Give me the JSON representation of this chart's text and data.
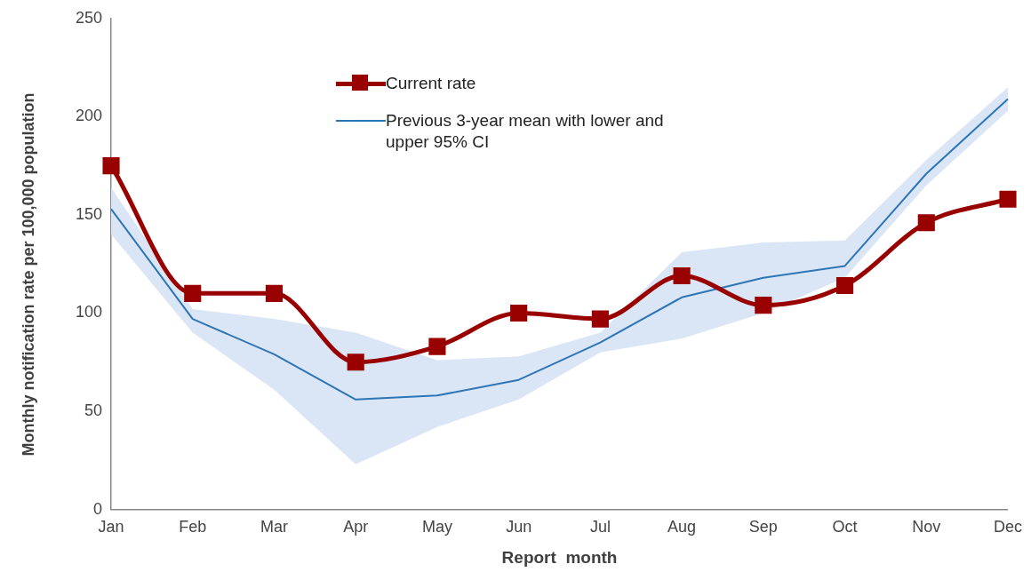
{
  "chart_data": {
    "type": "line",
    "xlabel": "Report  month",
    "ylabel": "Monthly notification rate per 100,000 population",
    "categories": [
      "Jan",
      "Feb",
      "Mar",
      "Apr",
      "May",
      "Jun",
      "Jul",
      "Aug",
      "Sep",
      "Oct",
      "Nov",
      "Dec"
    ],
    "series": [
      {
        "name": "Current rate",
        "color": "#990000",
        "marker": "square",
        "values": [
          175,
          110,
          110,
          75,
          83,
          100,
          97,
          119,
          104,
          114,
          146,
          158
        ]
      },
      {
        "name": "Previous 3-year mean with lower and upper 95% CI",
        "color": "#2e75b6",
        "marker": "none",
        "values": [
          153,
          97,
          79,
          56,
          58,
          66,
          85,
          108,
          118,
          124,
          171,
          209
        ],
        "lower": [
          140,
          90,
          61,
          23,
          42,
          56,
          80,
          87,
          100,
          118,
          165,
          203
        ],
        "upper": [
          164,
          102,
          97,
          90,
          76,
          78,
          90,
          131,
          136,
          137,
          178,
          215
        ]
      }
    ],
    "ylim": [
      0,
      250
    ],
    "yticks": [
      0,
      50,
      100,
      150,
      200,
      250
    ],
    "grid": false,
    "legend": "top"
  }
}
